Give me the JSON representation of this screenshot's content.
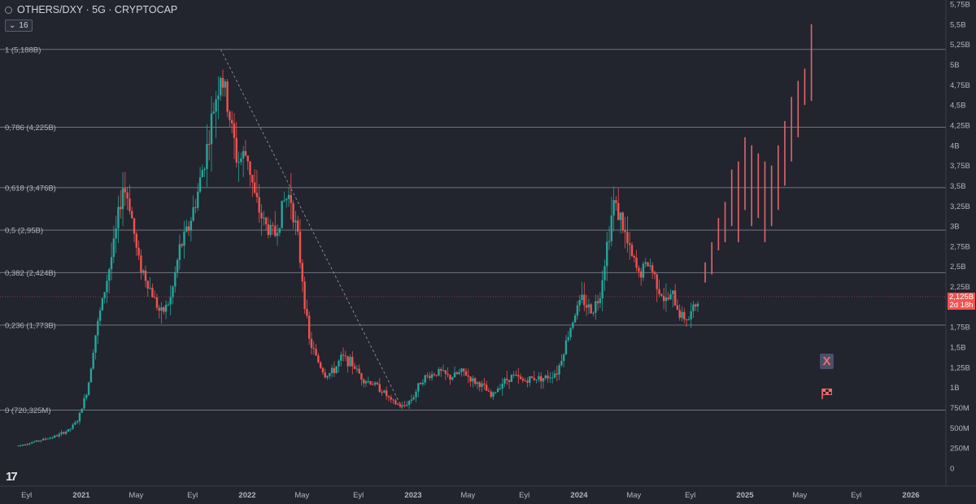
{
  "header": {
    "title": "OTHERS/DXY · 5G · CRYPTOCAP",
    "collapse_count": "16"
  },
  "price_label": {
    "value": "2,125B",
    "countdown": "2d 18h"
  },
  "badges": {
    "x_label": "X"
  },
  "branding": {
    "logo_text": "17"
  },
  "colors": {
    "background": "#22242e",
    "up": "#26a69a",
    "down": "#ef5350",
    "projection": "#e0666a",
    "fib_line": "#8e9199",
    "axis_text": "#b2b5be"
  },
  "chart_data": {
    "type": "candlestick",
    "symbol": "OTHERS/DXY",
    "interval": "5G",
    "source": "CRYPTOCAP",
    "ylim": [
      0,
      5.75
    ],
    "y_unit": "B",
    "y_ticks": [
      {
        "value": 0,
        "label": "0"
      },
      {
        "value": 0.25,
        "label": "250M"
      },
      {
        "value": 0.5,
        "label": "500M"
      },
      {
        "value": 0.75,
        "label": "750M"
      },
      {
        "value": 1.0,
        "label": "1B"
      },
      {
        "value": 1.25,
        "label": "1,25B"
      },
      {
        "value": 1.5,
        "label": "1,5B"
      },
      {
        "value": 1.75,
        "label": "1,75B"
      },
      {
        "value": 2.0,
        "label": "2B"
      },
      {
        "value": 2.25,
        "label": "2,25B"
      },
      {
        "value": 2.5,
        "label": "2,5B"
      },
      {
        "value": 2.75,
        "label": "2,75B"
      },
      {
        "value": 3.0,
        "label": "3B"
      },
      {
        "value": 3.25,
        "label": "3,25B"
      },
      {
        "value": 3.5,
        "label": "3,5B"
      },
      {
        "value": 3.75,
        "label": "3,75B"
      },
      {
        "value": 4.0,
        "label": "4B"
      },
      {
        "value": 4.25,
        "label": "4,25B"
      },
      {
        "value": 4.5,
        "label": "4,5B"
      },
      {
        "value": 4.75,
        "label": "4,75B"
      },
      {
        "value": 5.0,
        "label": "5B"
      },
      {
        "value": 5.25,
        "label": "5,25B"
      },
      {
        "value": 5.5,
        "label": "5,5B"
      },
      {
        "value": 5.75,
        "label": "5,75B"
      }
    ],
    "x_ticks": [
      {
        "t": 2020.67,
        "label": "Eyl"
      },
      {
        "t": 2021.0,
        "label": "2021"
      },
      {
        "t": 2021.33,
        "label": "May"
      },
      {
        "t": 2021.67,
        "label": "Eyl"
      },
      {
        "t": 2022.0,
        "label": "2022"
      },
      {
        "t": 2022.33,
        "label": "May"
      },
      {
        "t": 2022.67,
        "label": "Eyl"
      },
      {
        "t": 2023.0,
        "label": "2023"
      },
      {
        "t": 2023.33,
        "label": "May"
      },
      {
        "t": 2023.67,
        "label": "Eyl"
      },
      {
        "t": 2024.0,
        "label": "2024"
      },
      {
        "t": 2024.33,
        "label": "May"
      },
      {
        "t": 2024.67,
        "label": "Eyl"
      },
      {
        "t": 2025.0,
        "label": "2025"
      },
      {
        "t": 2025.33,
        "label": "May"
      },
      {
        "t": 2025.67,
        "label": "Eyl"
      },
      {
        "t": 2026.0,
        "label": "2026"
      }
    ],
    "fib_levels": [
      {
        "value": 5.188,
        "label": "1 (5,188B)"
      },
      {
        "value": 4.225,
        "label": "0,786 (4,225B)"
      },
      {
        "value": 3.476,
        "label": "0,618 (3,476B)"
      },
      {
        "value": 2.95,
        "label": "0,5 (2,95B)"
      },
      {
        "value": 2.424,
        "label": "0,382 (2,424B)"
      },
      {
        "value": 1.773,
        "label": "0,236 (1,773B)"
      },
      {
        "value": 0.720325,
        "label": "0 (720,325M)"
      }
    ],
    "current_price": 2.125,
    "trend_line": {
      "from": [
        2021.84,
        5.188
      ],
      "to": [
        2022.94,
        0.72
      ]
    },
    "price_path": [
      [
        2020.62,
        0.28
      ],
      [
        2020.72,
        0.33
      ],
      [
        2020.85,
        0.4
      ],
      [
        2020.93,
        0.48
      ],
      [
        2020.98,
        0.6
      ],
      [
        2021.04,
        1.0
      ],
      [
        2021.08,
        1.6
      ],
      [
        2021.15,
        2.3
      ],
      [
        2021.2,
        2.8
      ],
      [
        2021.25,
        3.5
      ],
      [
        2021.29,
        3.3
      ],
      [
        2021.34,
        2.6
      ],
      [
        2021.4,
        2.3
      ],
      [
        2021.48,
        1.9
      ],
      [
        2021.54,
        2.1
      ],
      [
        2021.59,
        2.7
      ],
      [
        2021.65,
        3.0
      ],
      [
        2021.7,
        3.4
      ],
      [
        2021.76,
        4.0
      ],
      [
        2021.81,
        4.6
      ],
      [
        2021.84,
        4.9
      ],
      [
        2021.89,
        4.4
      ],
      [
        2021.94,
        3.8
      ],
      [
        2022.0,
        3.9
      ],
      [
        2022.05,
        3.3
      ],
      [
        2022.11,
        3.0
      ],
      [
        2022.17,
        2.9
      ],
      [
        2022.22,
        3.3
      ],
      [
        2022.26,
        3.4
      ],
      [
        2022.3,
        2.9
      ],
      [
        2022.33,
        2.4
      ],
      [
        2022.37,
        1.6
      ],
      [
        2022.42,
        1.35
      ],
      [
        2022.47,
        1.15
      ],
      [
        2022.52,
        1.2
      ],
      [
        2022.57,
        1.38
      ],
      [
        2022.63,
        1.3
      ],
      [
        2022.7,
        1.1
      ],
      [
        2022.76,
        1.05
      ],
      [
        2022.82,
        0.95
      ],
      [
        2022.87,
        0.82
      ],
      [
        2022.94,
        0.76
      ],
      [
        2023.0,
        0.88
      ],
      [
        2023.05,
        1.1
      ],
      [
        2023.1,
        1.15
      ],
      [
        2023.16,
        1.2
      ],
      [
        2023.22,
        1.12
      ],
      [
        2023.3,
        1.2
      ],
      [
        2023.36,
        1.08
      ],
      [
        2023.42,
        1.02
      ],
      [
        2023.47,
        0.88
      ],
      [
        2023.53,
        1.05
      ],
      [
        2023.6,
        1.15
      ],
      [
        2023.66,
        1.08
      ],
      [
        2023.73,
        1.12
      ],
      [
        2023.8,
        1.12
      ],
      [
        2023.87,
        1.2
      ],
      [
        2023.92,
        1.55
      ],
      [
        2023.97,
        1.9
      ],
      [
        2024.02,
        2.1
      ],
      [
        2024.07,
        1.95
      ],
      [
        2024.12,
        2.1
      ],
      [
        2024.17,
        2.8
      ],
      [
        2024.21,
        3.3
      ],
      [
        2024.25,
        3.1
      ],
      [
        2024.3,
        2.7
      ],
      [
        2024.36,
        2.4
      ],
      [
        2024.42,
        2.55
      ],
      [
        2024.47,
        2.3
      ],
      [
        2024.52,
        2.05
      ],
      [
        2024.56,
        2.15
      ],
      [
        2024.61,
        1.9
      ],
      [
        2024.66,
        1.85
      ],
      [
        2024.72,
        2.1
      ]
    ],
    "projection_bars": [
      [
        2024.76,
        2.3,
        2.55
      ],
      [
        2024.8,
        2.4,
        2.8
      ],
      [
        2024.84,
        2.7,
        3.1
      ],
      [
        2024.88,
        2.8,
        3.3
      ],
      [
        2024.92,
        3.0,
        3.7
      ],
      [
        2024.96,
        2.8,
        3.8
      ],
      [
        2025.0,
        3.2,
        4.1
      ],
      [
        2025.04,
        3.0,
        4.0
      ],
      [
        2025.08,
        3.1,
        3.9
      ],
      [
        2025.12,
        2.8,
        3.8
      ],
      [
        2025.16,
        3.0,
        3.75
      ],
      [
        2025.2,
        3.2,
        4.0
      ],
      [
        2025.24,
        3.5,
        4.3
      ],
      [
        2025.28,
        3.8,
        4.6
      ],
      [
        2025.32,
        4.1,
        4.8
      ],
      [
        2025.36,
        4.5,
        4.95
      ],
      [
        2025.4,
        4.55,
        5.5
      ]
    ]
  }
}
